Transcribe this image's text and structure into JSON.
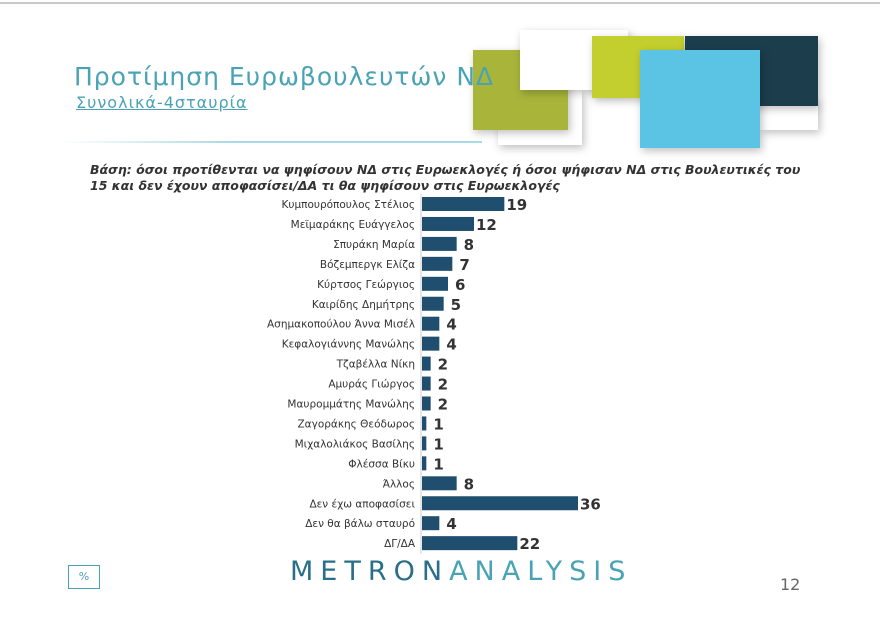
{
  "header": {
    "title": "Προτίμηση Ευρωβουλευτών ΝΔ",
    "subtitle": "Συνολικά-4σταυρία"
  },
  "base_note": "Βάση: όσοι προτίθενται να ψηφίσουν ΝΔ στις Ευρωεκλογές ή όσοι ψήφισαν ΝΔ στις Βουλευτικές του 15 και δεν έχουν αποφασίσει/ΔΑ τι θα ψηφίσουν στις Ευρωεκλογές",
  "footer": {
    "unit_box": "%",
    "logo_a": "METRON",
    "logo_b": "ANALYSIS",
    "page_number": "12"
  },
  "colors": {
    "bar": "#1f4e6e",
    "title": "#4aa3b5"
  },
  "chart_data": {
    "type": "bar",
    "orientation": "horizontal",
    "title": "",
    "xlabel": "",
    "ylabel": "",
    "xlim": [
      0,
      36
    ],
    "grid": false,
    "categories": [
      "Κυμπουρόπουλος Στέλιος",
      "Μεϊμαράκης Ευάγγελος",
      "Σπυράκη Μαρία",
      "Βόζεμπεργκ Ελίζα",
      "Κύρτσος Γεώργιος",
      "Καιρίδης Δημήτρης",
      "Ασημακοπούλου Άννα Μισέλ",
      "Κεφαλογιάννης Μανώλης",
      "Τζαβέλλα Νίκη",
      "Αμυράς Γιώργος",
      "Μαυρομμάτης Μανώλης",
      "Ζαγοράκης Θεόδωρος",
      "Μιχαλολιάκος Βασίλης",
      "Φλέσσα Βίκυ",
      "Άλλος",
      "Δεν έχω αποφασίσει",
      "Δεν θα βάλω σταυρό",
      "ΔΓ/ΔΑ"
    ],
    "values": [
      19,
      12,
      8,
      7,
      6,
      5,
      4,
      4,
      2,
      2,
      2,
      1,
      1,
      1,
      8,
      36,
      4,
      22
    ]
  }
}
